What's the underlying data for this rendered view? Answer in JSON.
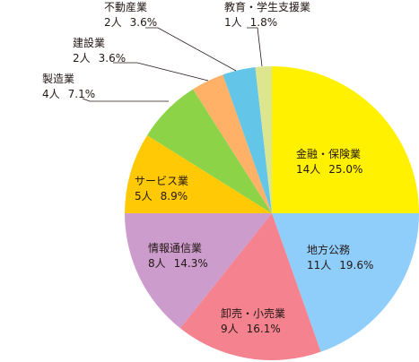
{
  "chart_data": {
    "type": "pie",
    "start": "12 o'clock",
    "direction": "clockwise",
    "slices": [
      {
        "name": "金融・保険業",
        "count": "14人",
        "percent": "25.0%",
        "value": 25.0,
        "color": "#fff100"
      },
      {
        "name": "地方公務",
        "count": "11人",
        "percent": "19.6%",
        "value": 19.6,
        "color": "#8fcdfb"
      },
      {
        "name": "卸売・小売業",
        "count": "9人",
        "percent": "16.1%",
        "value": 16.1,
        "color": "#f4828f"
      },
      {
        "name": "情報通信業",
        "count": "8人",
        "percent": "14.3%",
        "value": 14.3,
        "color": "#cc9ccc"
      },
      {
        "name": "サービス業",
        "count": "5人",
        "percent": "8.9%",
        "value": 8.9,
        "color": "#ffca05"
      },
      {
        "name": "製造業",
        "count": "4人",
        "percent": "7.1%",
        "value": 7.1,
        "color": "#8cd348"
      },
      {
        "name": "建設業",
        "count": "2人",
        "percent": "3.6%",
        "value": 3.6,
        "color": "#ffb267"
      },
      {
        "name": "不動産業",
        "count": "2人",
        "percent": "3.6%",
        "value": 3.6,
        "color": "#63c6e8"
      },
      {
        "name": "教育・学生支援業",
        "count": "1人",
        "percent": "1.8%",
        "value": 1.8,
        "color": "#dbe68f"
      }
    ]
  }
}
